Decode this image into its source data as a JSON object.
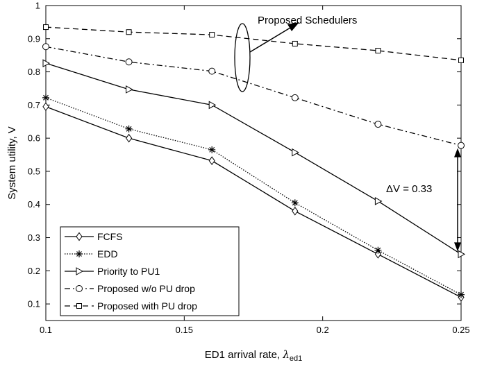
{
  "chart_data": {
    "type": "line",
    "title": "",
    "xlabel": "ED1 arrival rate, ",
    "xlabel_symbol": "λ",
    "xlabel_subscript": "ed1",
    "ylabel": "System utility, V",
    "xlim": [
      0.1,
      0.25
    ],
    "ylim": [
      0.05,
      1.0
    ],
    "xticks": [
      0.1,
      0.15,
      0.2,
      0.25
    ],
    "xtick_labels": [
      "0.1",
      "0.15",
      "0.2",
      "0.25"
    ],
    "yticks": [
      0.1,
      0.2,
      0.3,
      0.4,
      0.5,
      0.6,
      0.7,
      0.8,
      0.9,
      1.0
    ],
    "ytick_labels": [
      "0.1",
      "0.2",
      "0.3",
      "0.4",
      "0.5",
      "0.6",
      "0.7",
      "0.8",
      "0.9",
      "1"
    ],
    "grid": false,
    "legend_position": "bottom-left",
    "x": [
      0.1,
      0.13,
      0.16,
      0.19,
      0.22,
      0.25
    ],
    "series": [
      {
        "name": "FCFS",
        "marker": "diamond",
        "dash": "solid",
        "values": [
          0.695,
          0.6,
          0.532,
          0.38,
          0.25,
          0.12
        ]
      },
      {
        "name": "EDD",
        "marker": "asterisk",
        "dash": "dotted",
        "values": [
          0.722,
          0.628,
          0.565,
          0.405,
          0.262,
          0.128
        ]
      },
      {
        "name": "Priority to PU1",
        "marker": "triangle-right",
        "dash": "solid",
        "values": [
          0.826,
          0.747,
          0.7,
          0.557,
          0.41,
          0.25
        ]
      },
      {
        "name": "Proposed w/o PU drop",
        "marker": "circle",
        "dash": "dashdot",
        "values": [
          0.876,
          0.83,
          0.802,
          0.722,
          0.642,
          0.578
        ]
      },
      {
        "name": "Proposed with PU drop",
        "marker": "square",
        "dash": "dashed",
        "values": [
          0.935,
          0.92,
          0.912,
          0.885,
          0.864,
          0.835
        ]
      }
    ],
    "annotations": [
      {
        "text": "Proposed Schedulers"
      },
      {
        "text": "ΔV = 0.33"
      }
    ]
  }
}
